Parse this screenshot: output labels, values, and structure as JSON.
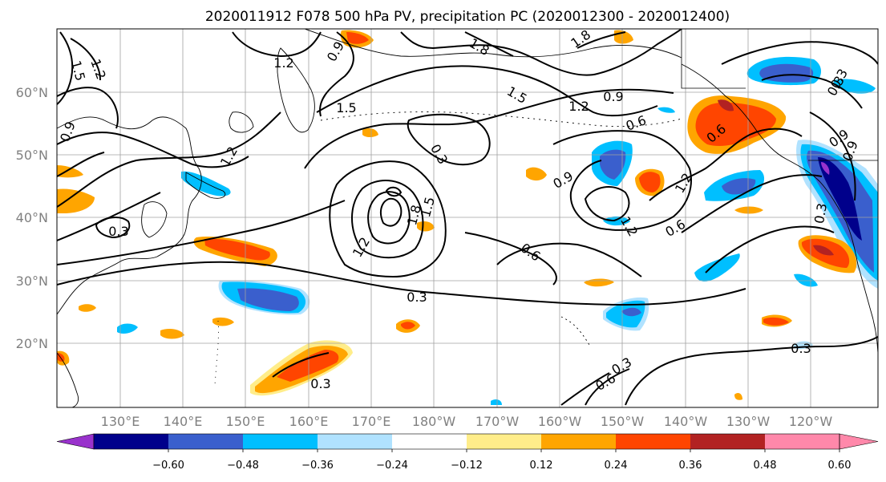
{
  "title": "2020011912 F078 500 hPa PV, precipitation PC (2020012300 - 2020012400)",
  "lat_labels": [
    "60°N",
    "50°N",
    "40°N",
    "30°N",
    "20°N"
  ],
  "lon_labels": [
    "130°E",
    "140°E",
    "150°E",
    "160°E",
    "170°E",
    "180°W",
    "170°W",
    "160°W",
    "150°W",
    "140°W",
    "130°W",
    "120°W"
  ],
  "contour_labels": [
    "1.2",
    "0.9",
    "1.8",
    "1.8",
    "1.5",
    "1.2",
    "1.5",
    "0.9",
    "0.3",
    "1.5",
    "1.2",
    "0.9",
    "0.6",
    "0.3",
    "0.9",
    "1.2",
    "1.8",
    "1.5",
    "1.2",
    "0.6",
    "0.3",
    "0.6",
    "1.2",
    "0.6",
    "1.2",
    "0.9",
    "0.3",
    "0.6",
    "0.3",
    "0.3",
    "0.3",
    "0.3",
    "0.9",
    "0.3",
    "1.2",
    "1.5"
  ],
  "colorbar": {
    "colors": [
      "#9932cc",
      "#00008b",
      "#3a5fcd",
      "#00bfff",
      "#b0e2ff",
      "#ffffff",
      "#ffed8a",
      "#ffa500",
      "#ff4500",
      "#b22222",
      "#ff88aa",
      "#ff88aa"
    ],
    "ticks": [
      "−0.60",
      "−0.48",
      "−0.36",
      "−0.24",
      "−0.12",
      "0.12",
      "0.24",
      "0.36",
      "0.48",
      "0.60"
    ]
  },
  "shading_colors": {
    "dark_blue": "#3a5fcd",
    "blue": "#00bfff",
    "light_blue": "#b0e2ff",
    "yellow": "#ffed8a",
    "orange": "#ffa500",
    "red": "#ff4500",
    "dark_red": "#b22222",
    "purple": "#9932cc",
    "navy": "#00008b"
  }
}
